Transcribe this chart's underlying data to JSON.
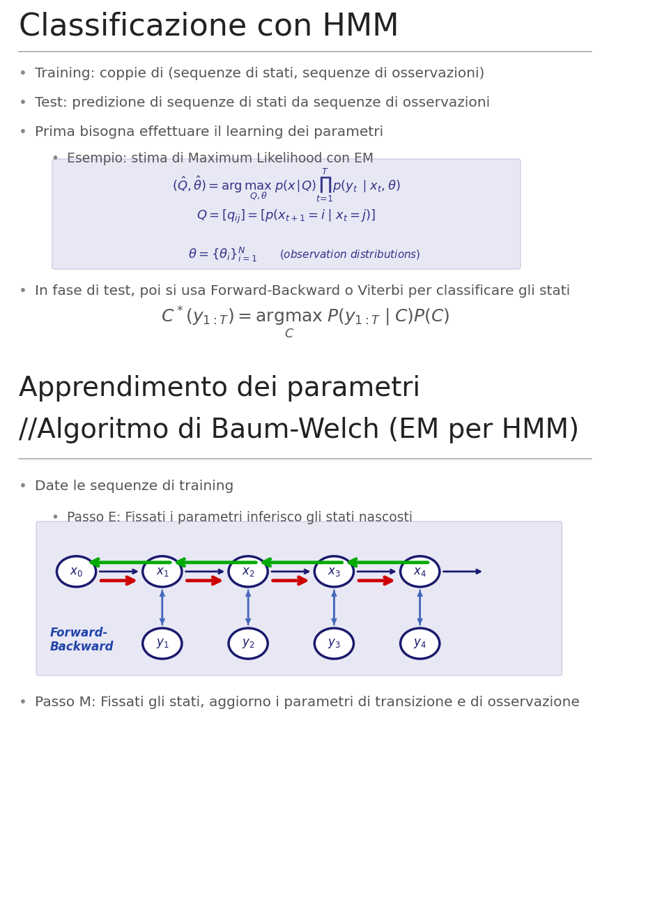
{
  "title": "Classificazione con HMM",
  "title_fontsize": 32,
  "title_color": "#222222",
  "bg_color": "#ffffff",
  "bullet_color": "#888888",
  "text_color": "#555555",
  "section2_title_line1": "Apprendimento dei parametri",
  "section2_title_line2": "//Algoritmo di Baum-Welch (EM per HMM)",
  "section2_title_fontsize": 28,
  "bullets": [
    "Training: coppie di (sequenze di stati, sequenze di osservazioni)",
    "Test: predizione di sequenze di stati da sequenze di osservazioni",
    "Prima bisogna effettuare il learning dei parametri"
  ],
  "sub_bullet": "Esempio: stima di Maximum Likelihood con EM",
  "bullet_test": "In fase di test, poi si usa Forward-Backward o Viterbi per classificare gli stati",
  "bullet_date": "Date le sequenze di training",
  "bullet_passoE": "Passo E: Fissati i parametri inferisco gli stati nascosti",
  "bullet_passoM": "Passo M: Fissati gli stati, aggiorno i parametri di transizione e di osservazione",
  "formula_box_color": "#e8e8f5",
  "formula_text_color": "#333388",
  "node_color": "#1a1a6e",
  "node_fill": "#ffffff",
  "arrow_forward": "#cc0000",
  "arrow_backward": "#00aa00",
  "arrow_emission": "#4466bb",
  "fb_box_color": "#e8e8f5"
}
